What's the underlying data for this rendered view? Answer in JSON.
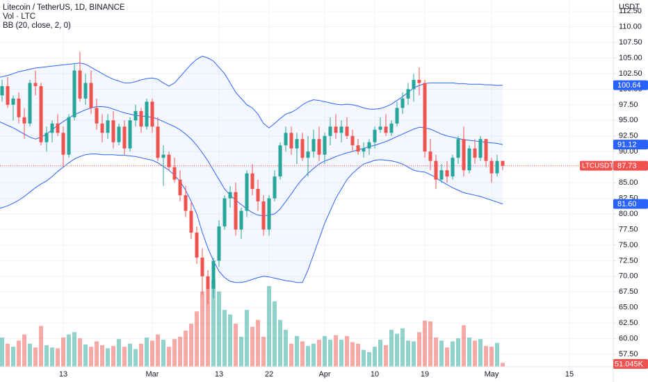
{
  "chart_data": {
    "type": "candlestick",
    "title": "Litecoin / TetherUS, 1D, BINANCE",
    "indicators": [
      "Vol · LTC",
      "BB (20, close, 2, 0)"
    ],
    "y_axis_label": "USDT",
    "up_color": "#26a69a",
    "down_color": "#ef5350",
    "band_color": "#2962ff",
    "grid": true,
    "categories": [
      null,
      null,
      null,
      null,
      null,
      null,
      null,
      null,
      null,
      null,
      null,
      null,
      "13",
      null,
      null,
      null,
      null,
      null,
      null,
      null,
      null,
      null,
      null,
      null,
      null,
      null,
      null,
      null,
      "Mar",
      null,
      null,
      null,
      null,
      null,
      null,
      null,
      null,
      null,
      null,
      null,
      "13",
      null,
      null,
      null,
      null,
      null,
      null,
      null,
      null,
      "22",
      null,
      null,
      null,
      null,
      null,
      null,
      null,
      null,
      null,
      "Apr",
      null,
      null,
      null,
      null,
      null,
      null,
      null,
      null,
      "10",
      null,
      null,
      null,
      null,
      null,
      null,
      null,
      null,
      "19",
      null,
      null,
      null,
      null,
      null,
      null,
      null,
      null,
      null,
      null,
      null,
      "May",
      null,
      null,
      null,
      null,
      null,
      null,
      null,
      null,
      null,
      null,
      null,
      null,
      null,
      "15",
      null,
      null,
      null,
      null,
      null,
      null,
      null
    ],
    "open": [
      97,
      99,
      100.5,
      97.5,
      98.5,
      95.5,
      94.5,
      101,
      100.5,
      91.5,
      93,
      94.5,
      93,
      89.5,
      95.5,
      103,
      98.5,
      101,
      97,
      94.5,
      93,
      95,
      91.5,
      94,
      90.5,
      95,
      96.5,
      94,
      98,
      94,
      89,
      89.5,
      87.5,
      85.5,
      83,
      80.5,
      77,
      73,
      70,
      68,
      72.5,
      78,
      82.5,
      83.5,
      77.5,
      80.5,
      86.5,
      84,
      82,
      77.5,
      82.5,
      86,
      91,
      93,
      90.5,
      92,
      89,
      90,
      92,
      89.5,
      92.5,
      94,
      93,
      94,
      92.5,
      91,
      90,
      90.5,
      91.5,
      93.5,
      94,
      93,
      94.5,
      97,
      98.5,
      100,
      101.5,
      101,
      90,
      88.5,
      85.5,
      87,
      86,
      89,
      92,
      87,
      90.5,
      89,
      92,
      88.5,
      86.5,
      88.5,
      null,
      null,
      null,
      null,
      null,
      null,
      null,
      null,
      null,
      null,
      null,
      null,
      null,
      null,
      null,
      null,
      null,
      null,
      null
    ],
    "high": [
      99.5,
      101.5,
      102,
      99,
      99.5,
      97,
      101.5,
      103,
      101,
      94,
      95,
      96,
      94,
      96,
      104,
      106,
      102.5,
      103,
      98.5,
      96,
      96,
      96.5,
      94.5,
      95,
      95.5,
      97.5,
      97,
      98.5,
      98.5,
      95.5,
      91,
      90,
      89,
      87,
      84.5,
      82,
      78,
      74.5,
      71,
      73,
      79,
      83,
      84.5,
      85,
      81,
      87,
      88,
      85.5,
      83,
      83,
      87,
      91.5,
      94,
      94,
      93,
      93,
      92.5,
      93.5,
      94,
      93,
      95.5,
      96,
      95,
      95.5,
      93.5,
      92,
      91.5,
      92,
      94,
      95.5,
      96,
      95,
      98,
      99.5,
      101,
      102.5,
      103.5,
      101.5,
      92,
      89.5,
      88,
      88.5,
      89.5,
      92.5,
      94,
      91,
      92,
      92.5,
      92,
      89,
      89.5,
      88.5,
      null,
      null,
      null,
      null,
      null,
      null,
      null,
      null,
      null,
      null,
      null,
      null,
      null,
      null,
      null,
      null,
      null,
      null,
      null
    ],
    "low": [
      96,
      98,
      97,
      95,
      94.5,
      92,
      94,
      99,
      91,
      90,
      91.5,
      92.5,
      87.5,
      89,
      95,
      98,
      97.5,
      96,
      93.5,
      91.5,
      92,
      90.5,
      91,
      89.5,
      90,
      94,
      93,
      93.5,
      93,
      88.5,
      84.5,
      87,
      85,
      82,
      79.5,
      76,
      72,
      67,
      65.5,
      66.5,
      71.5,
      77.5,
      81,
      76.5,
      76,
      79.5,
      83,
      80.5,
      76.5,
      76.5,
      82,
      85.5,
      90,
      89.5,
      88,
      88.5,
      86,
      89,
      88.5,
      88,
      91,
      92,
      91.5,
      92,
      90,
      89.5,
      89,
      89.5,
      90.5,
      93,
      92.5,
      92.5,
      94,
      96,
      97.5,
      98,
      99,
      89,
      87,
      84,
      85,
      85,
      85.5,
      88,
      86,
      86.5,
      88,
      88.5,
      87.5,
      85,
      86,
      87,
      null,
      null,
      null,
      null,
      null,
      null,
      null,
      null,
      null,
      null,
      null,
      null,
      null,
      null,
      null,
      null,
      null,
      null,
      null
    ],
    "close": [
      99,
      100.5,
      97.5,
      98.5,
      95.5,
      94.5,
      101,
      100.5,
      91.5,
      93,
      94.5,
      93,
      89.5,
      95.5,
      103,
      98.5,
      101,
      97,
      94.5,
      93,
      95,
      91.5,
      94,
      90.5,
      95,
      96.5,
      94,
      98,
      94,
      89,
      89.5,
      87.5,
      85.5,
      83,
      80.5,
      77,
      73,
      70,
      68,
      72.5,
      78,
      82.5,
      83.5,
      77.5,
      80.5,
      86.5,
      84,
      82,
      77.5,
      82.5,
      86,
      91,
      93,
      90.5,
      92,
      89,
      90,
      92,
      89.5,
      92.5,
      94,
      93,
      94,
      92.5,
      91,
      90,
      90.5,
      91.5,
      93.5,
      94,
      93,
      94.5,
      97,
      98.5,
      100,
      101.5,
      101,
      90,
      88.5,
      85.5,
      87,
      86,
      89,
      92,
      87,
      90.5,
      89,
      92,
      88.5,
      86.5,
      88.5,
      87.73,
      null,
      null,
      null,
      null,
      null,
      null,
      null,
      null,
      null,
      null,
      null,
      null,
      null,
      null,
      null,
      null,
      null,
      null,
      null
    ],
    "volume": {
      "values": [
        330,
        380,
        300,
        260,
        340,
        420,
        300,
        250,
        530,
        280,
        250,
        240,
        380,
        420,
        450,
        370,
        290,
        260,
        330,
        280,
        240,
        270,
        360,
        260,
        300,
        230,
        300,
        380,
        340,
        420,
        350,
        260,
        360,
        390,
        470,
        560,
        720,
        980,
        1020,
        1130,
        980,
        740,
        680,
        560,
        390,
        740,
        520,
        610,
        390,
        1050,
        850,
        610,
        480,
        300,
        400,
        330,
        270,
        300,
        350,
        400,
        350,
        410,
        350,
        400,
        320,
        300,
        220,
        190,
        260,
        350,
        280,
        480,
        430,
        500,
        340,
        330,
        450,
        600,
        590,
        380,
        340,
        250,
        330,
        370,
        540,
        380,
        340,
        360,
        270,
        260,
        310,
        51.045,
        null,
        null,
        null,
        null,
        null,
        null,
        null,
        null,
        null,
        null,
        null,
        null,
        null,
        null,
        null,
        null,
        null,
        null,
        null
      ],
      "value_labels": [
        null,
        null,
        null,
        null,
        null,
        null,
        null,
        null,
        null,
        null,
        null,
        null,
        null,
        null,
        null,
        null,
        null,
        null,
        null,
        null,
        null,
        null,
        null,
        null,
        null,
        null,
        null,
        null,
        null,
        null,
        null,
        null,
        null,
        null,
        null,
        null,
        null,
        null,
        null,
        null,
        null,
        null,
        null,
        null,
        null,
        null,
        null,
        null,
        null,
        null,
        null,
        null,
        null,
        null,
        null,
        null,
        null,
        null,
        null,
        null,
        null,
        null,
        null,
        null,
        null,
        null,
        null,
        null,
        null,
        null,
        null,
        null,
        null,
        null,
        null,
        null,
        null,
        null,
        null,
        null,
        null,
        null,
        null,
        null,
        null,
        null,
        null,
        null,
        null,
        null,
        null,
        "51.045K",
        null,
        null,
        null,
        null,
        null,
        null,
        null,
        null,
        null,
        null,
        null,
        null,
        null,
        null,
        null,
        null,
        null,
        null,
        null
      ]
    },
    "bb_upper": [
      101.8,
      102.0,
      102.2,
      102.5,
      102.8,
      103.0,
      103.2,
      103.4,
      103.5,
      103.6,
      103.7,
      103.8,
      103.9,
      104.0,
      104.1,
      104.2,
      104.0,
      103.5,
      103.0,
      102.5,
      102.0,
      101.6,
      101.3,
      101.0,
      101.0,
      101.2,
      101.5,
      101.7,
      101.8,
      101.6,
      101.0,
      100.5,
      101.0,
      102.0,
      103.0,
      104.0,
      104.8,
      105.3,
      105.0,
      104.5,
      103.5,
      102.5,
      101.0,
      99.5,
      98.5,
      97.5,
      97.0,
      96.0,
      94.5,
      93.8,
      94.5,
      95.3,
      96.0,
      96.3,
      96.8,
      97.5,
      98.0,
      98.3,
      98.2,
      98.0,
      97.8,
      97.6,
      97.5,
      97.6,
      97.5,
      97.3,
      97.0,
      96.8,
      96.8,
      96.9,
      97.2,
      97.6,
      98.2,
      98.8,
      99.5,
      100.2,
      100.6,
      100.9,
      101.0,
      101.0,
      101.0,
      101.0,
      101.0,
      100.9,
      100.9,
      100.8,
      100.8,
      100.8,
      100.7,
      100.7,
      100.6,
      100.64,
      null,
      null,
      null,
      null,
      null,
      null,
      null,
      null,
      null,
      null,
      null,
      null,
      null,
      null,
      null,
      null,
      null,
      null,
      null
    ],
    "bb_middle": [
      95.0,
      94.6,
      94.2,
      93.8,
      93.3,
      92.8,
      92.3,
      92.0,
      92.3,
      92.8,
      93.5,
      94.2,
      94.8,
      95.4,
      95.9,
      96.3,
      96.7,
      97.0,
      97.2,
      97.2,
      97.1,
      96.8,
      96.5,
      96.2,
      96.0,
      95.8,
      95.7,
      95.6,
      95.5,
      95.2,
      94.8,
      94.4,
      94.0,
      93.5,
      92.8,
      92.0,
      91.0,
      89.8,
      88.5,
      87.0,
      85.5,
      84.0,
      83.0,
      82.2,
      81.5,
      80.8,
      80.2,
      79.8,
      79.7,
      79.8,
      80.0,
      80.8,
      82.0,
      83.2,
      84.5,
      85.6,
      86.5,
      87.3,
      88.0,
      88.5,
      88.8,
      89.2,
      89.5,
      89.8,
      90.0,
      90.3,
      90.5,
      90.8,
      91.0,
      91.3,
      91.6,
      92.0,
      92.4,
      92.8,
      93.2,
      93.6,
      93.9,
      93.8,
      93.6,
      93.2,
      92.8,
      92.5,
      92.3,
      92.1,
      91.9,
      91.8,
      91.7,
      91.6,
      91.5,
      91.4,
      91.3,
      91.12,
      null,
      null,
      null,
      null,
      null,
      null,
      null,
      null,
      null,
      null,
      null,
      null,
      null,
      null,
      null,
      null,
      null,
      null,
      null
    ],
    "bb_lower": [
      80.8,
      81.0,
      81.3,
      81.7,
      82.2,
      82.8,
      83.5,
      84.2,
      84.8,
      85.3,
      86.0,
      86.8,
      87.5,
      88.2,
      88.8,
      89.2,
      89.5,
      89.6,
      89.6,
      89.5,
      89.5,
      89.5,
      89.4,
      89.4,
      89.3,
      89.2,
      89.0,
      88.8,
      88.6,
      88.2,
      87.6,
      87.0,
      86.2,
      85.2,
      83.8,
      82.0,
      80.0,
      77.0,
      74.5,
      72.5,
      70.8,
      69.8,
      69.2,
      69.0,
      69.0,
      69.2,
      69.5,
      69.8,
      70.0,
      69.9,
      69.7,
      69.5,
      69.3,
      69.2,
      69.0,
      69.0,
      71.0,
      73.5,
      76.0,
      78.5,
      80.5,
      82.5,
      84.0,
      85.5,
      86.5,
      87.3,
      88.0,
      88.3,
      88.6,
      88.7,
      88.6,
      88.5,
      88.3,
      88.0,
      87.5,
      87.0,
      86.8,
      86.7,
      86.3,
      85.8,
      85.2,
      84.7,
      84.2,
      83.8,
      83.4,
      83.2,
      83.0,
      82.8,
      82.5,
      82.2,
      81.9,
      81.6,
      null,
      null,
      null,
      null,
      null,
      null,
      null,
      null,
      null,
      null,
      null,
      null,
      null,
      null,
      null,
      null,
      null,
      null,
      null
    ],
    "price_tags": [
      {
        "value": 100.64,
        "label": "100.64",
        "color": "#2962ff"
      },
      {
        "value": 91.12,
        "label": "91.12",
        "color": "#2962ff"
      },
      {
        "value": 81.6,
        "label": "81.60",
        "color": "#2962ff"
      },
      {
        "value": 87.73,
        "label": "87.73",
        "name": "LTCUSDT",
        "color": "#ef5350"
      }
    ],
    "ylim": [
      55.5,
      114.3
    ],
    "yticks": [
      {
        "value": 57.5,
        "label": "57.50"
      },
      {
        "value": 60,
        "label": "60.00"
      },
      {
        "value": 62.5,
        "label": "62.50"
      },
      {
        "value": 65,
        "label": "65.00"
      },
      {
        "value": 67.5,
        "label": "67.50"
      },
      {
        "value": 70,
        "label": "70.00"
      },
      {
        "value": 72.5,
        "label": "72.50"
      },
      {
        "value": 75,
        "label": "75.00"
      },
      {
        "value": 77.5,
        "label": "77.50"
      },
      {
        "value": 80,
        "label": "80.00"
      },
      {
        "value": 82.5,
        "label": "82.50"
      },
      {
        "value": 85,
        "label": "85.00"
      },
      {
        "value": 87.5,
        "label": "87.50"
      },
      {
        "value": 90,
        "label": "90.00"
      },
      {
        "value": 92.5,
        "label": "92.50"
      },
      {
        "value": 95,
        "label": "95.00"
      },
      {
        "value": 97.5,
        "label": "97.50"
      },
      {
        "value": 100,
        "label": "100.00"
      },
      {
        "value": 102.5,
        "label": "102.50"
      },
      {
        "value": 105,
        "label": "105.00"
      },
      {
        "value": 107.5,
        "label": "107.50"
      },
      {
        "value": 110,
        "label": "110.00"
      },
      {
        "value": 112.5,
        "label": "112.50"
      }
    ]
  }
}
